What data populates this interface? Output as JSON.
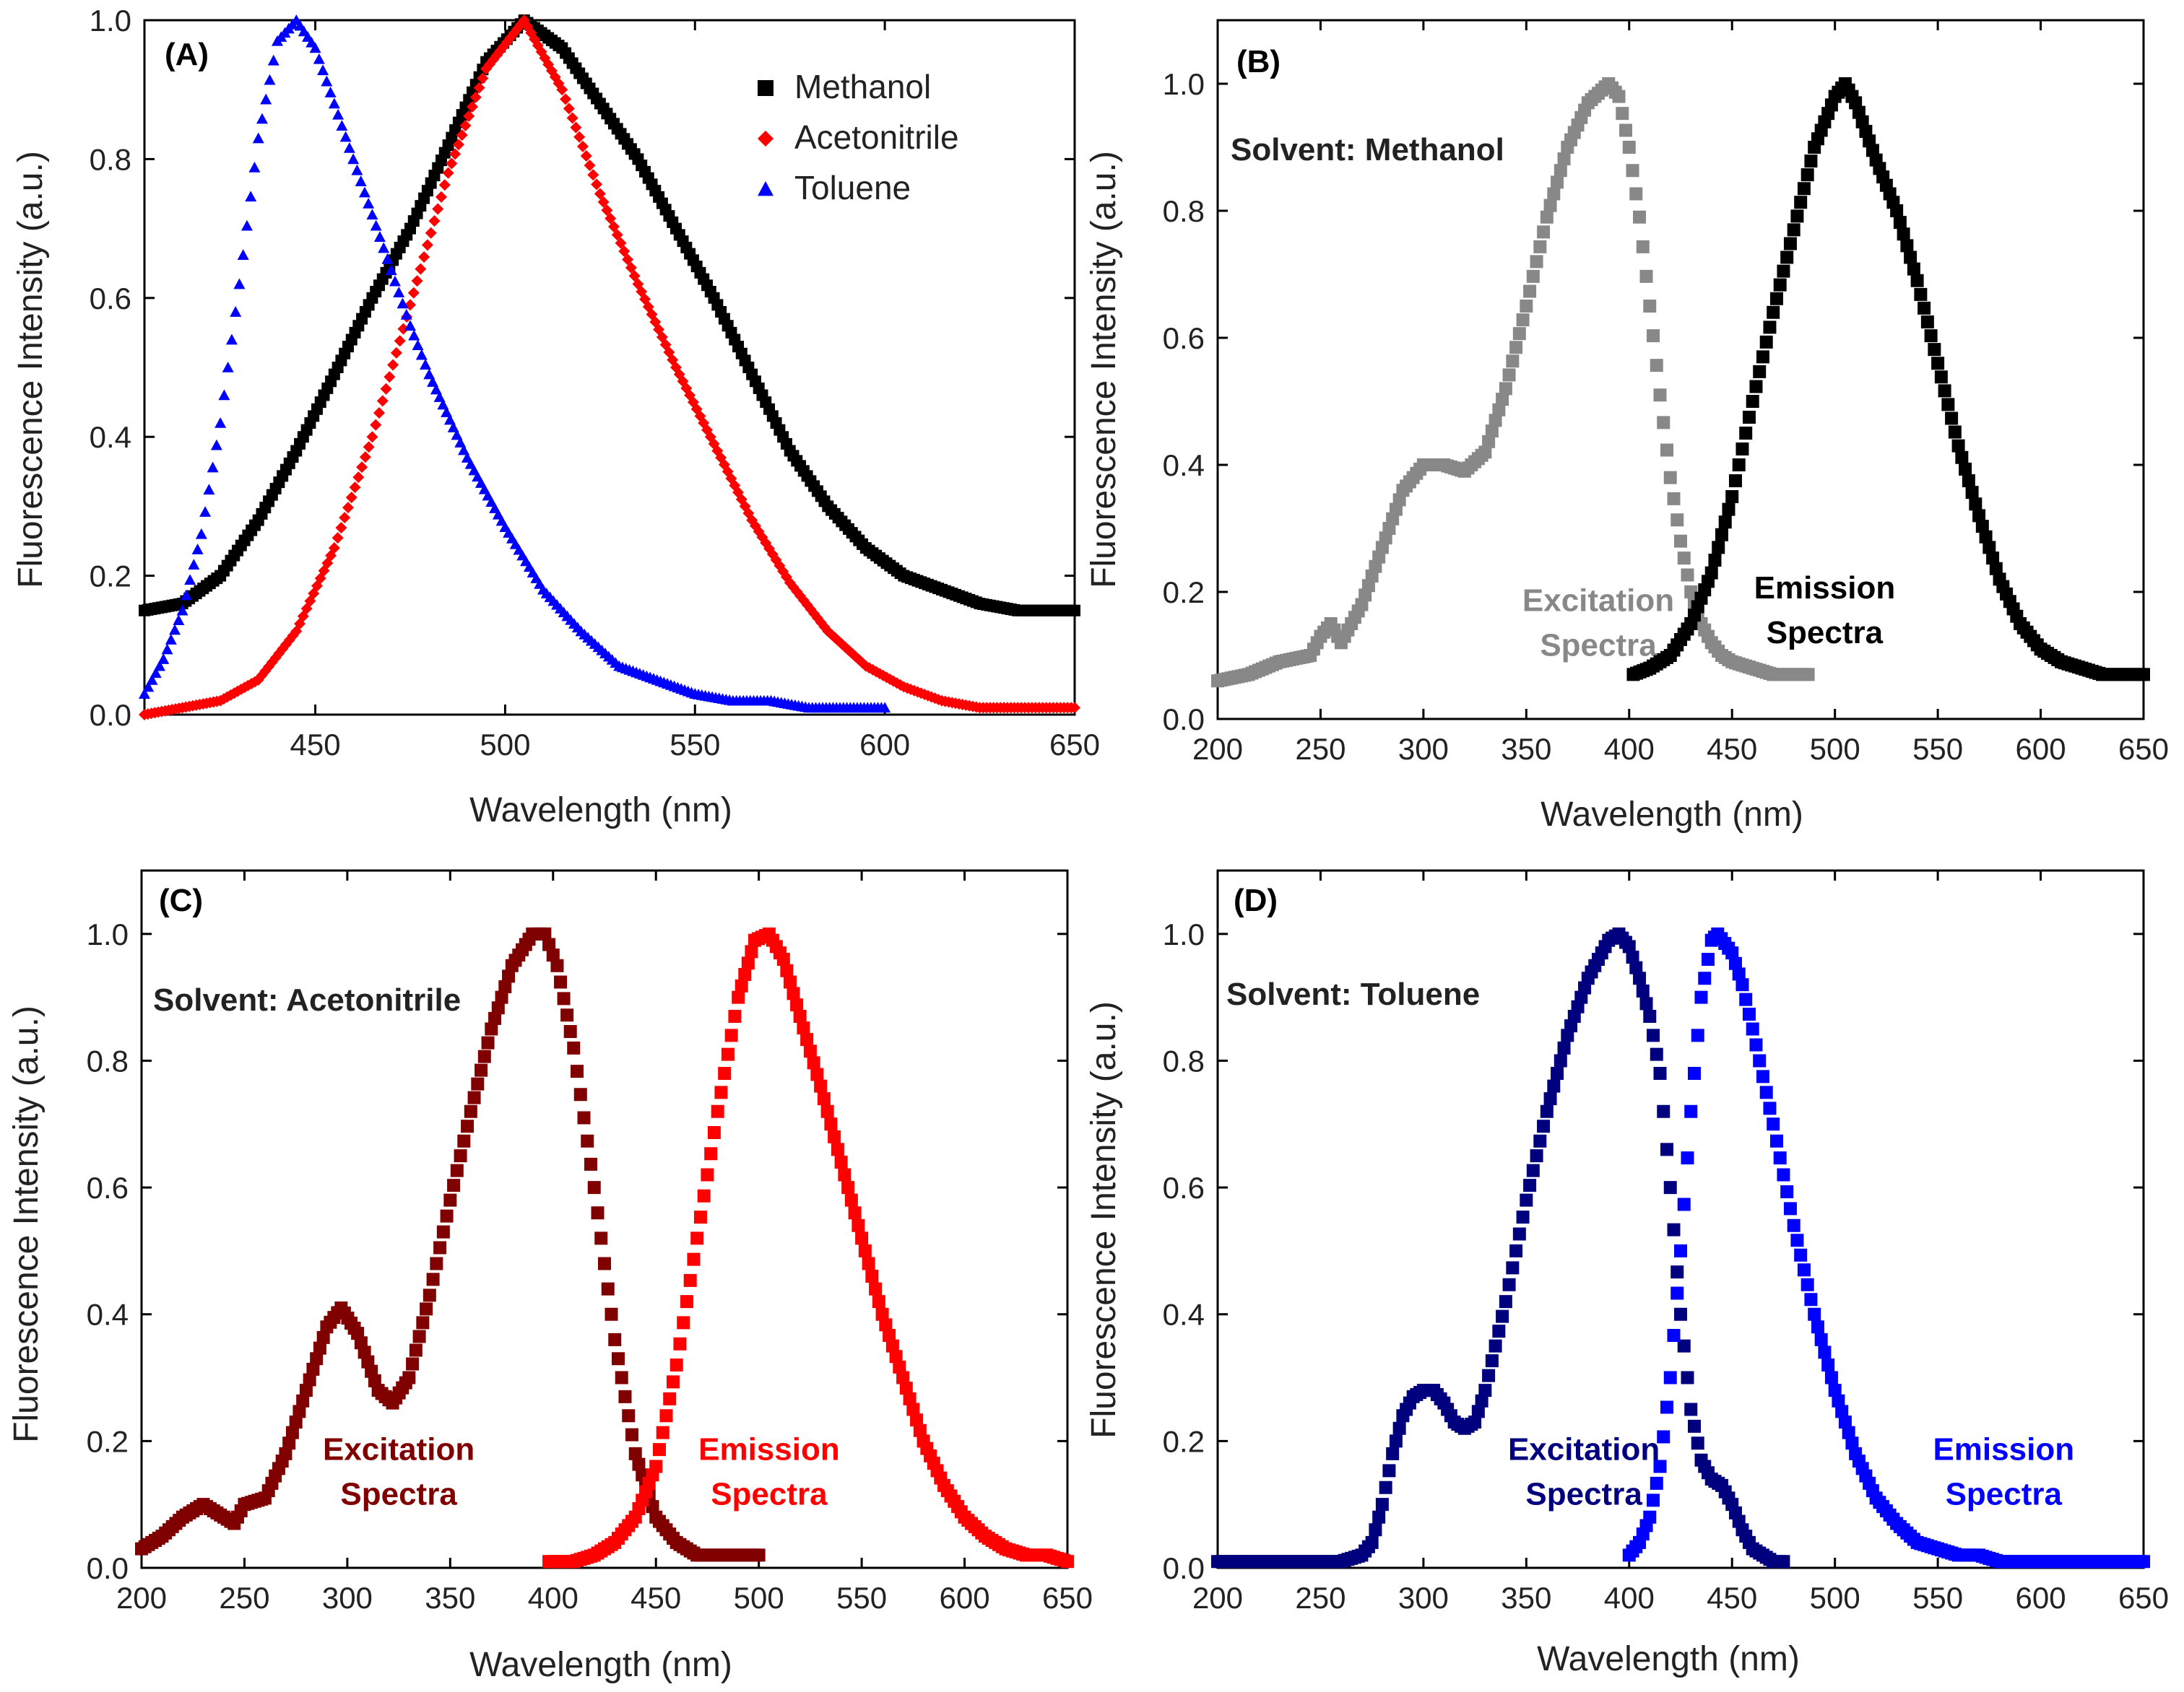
{
  "chart_data": [
    {
      "type": "scatter",
      "panel_label": "(A)",
      "xlabel": "Wavelength (nm)",
      "ylabel": "Fluorescence Intensity (a.u.)",
      "xlim": [
        405,
        650
      ],
      "ylim": [
        0,
        1.0
      ],
      "xticks": [
        "450",
        "500",
        "550",
        "600",
        "650"
      ],
      "yticks": [
        "0.0",
        "0.2",
        "0.4",
        "0.6",
        "0.8",
        "1.0"
      ],
      "legend_position": "top-right",
      "series": [
        {
          "name": "Methanol",
          "color": "#000000",
          "marker": "square",
          "x": [
            405,
            415,
            425,
            435,
            445,
            455,
            465,
            475,
            485,
            495,
            505,
            515,
            525,
            535,
            545,
            555,
            565,
            575,
            585,
            595,
            605,
            615,
            625,
            635,
            650
          ],
          "y": [
            0.15,
            0.16,
            0.2,
            0.28,
            0.38,
            0.49,
            0.6,
            0.7,
            0.82,
            0.94,
            1.0,
            0.96,
            0.88,
            0.8,
            0.7,
            0.6,
            0.49,
            0.38,
            0.3,
            0.24,
            0.2,
            0.18,
            0.16,
            0.15,
            0.15
          ]
        },
        {
          "name": "Acetonitrile",
          "color": "#ff0000",
          "marker": "diamond",
          "x": [
            405,
            415,
            425,
            435,
            445,
            455,
            465,
            475,
            485,
            495,
            505,
            515,
            525,
            535,
            545,
            555,
            565,
            575,
            585,
            595,
            605,
            615,
            625,
            635,
            650
          ],
          "y": [
            0.0,
            0.01,
            0.02,
            0.05,
            0.12,
            0.24,
            0.4,
            0.59,
            0.78,
            0.93,
            1.0,
            0.9,
            0.75,
            0.62,
            0.5,
            0.39,
            0.28,
            0.19,
            0.12,
            0.07,
            0.04,
            0.02,
            0.01,
            0.01,
            0.01
          ]
        },
        {
          "name": "Toluene",
          "color": "#0000ff",
          "marker": "triangle",
          "x": [
            405,
            410,
            415,
            420,
            425,
            430,
            435,
            440,
            445,
            450,
            455,
            460,
            465,
            470,
            475,
            480,
            490,
            500,
            510,
            520,
            530,
            540,
            550,
            560,
            570,
            580,
            590,
            600
          ],
          "y": [
            0.03,
            0.08,
            0.15,
            0.26,
            0.42,
            0.62,
            0.83,
            0.97,
            1.0,
            0.96,
            0.88,
            0.8,
            0.72,
            0.64,
            0.56,
            0.49,
            0.37,
            0.27,
            0.18,
            0.12,
            0.07,
            0.05,
            0.03,
            0.02,
            0.02,
            0.01,
            0.01,
            0.01
          ]
        }
      ]
    },
    {
      "type": "scatter",
      "panel_label": "(B)",
      "annotation": "Solvent: Methanol",
      "xlabel": "Wavelength (nm)",
      "ylabel": "Fluorescence Intensity (a.u.)",
      "xlim": [
        200,
        650
      ],
      "ylim": [
        0,
        1.1
      ],
      "xticks": [
        "200",
        "250",
        "300",
        "350",
        "400",
        "450",
        "500",
        "550",
        "600",
        "650"
      ],
      "yticks": [
        "0.0",
        "0.2",
        "0.4",
        "0.6",
        "0.8",
        "1.0"
      ],
      "series": [
        {
          "name": "Excitation Spectra",
          "label_lines": [
            "Excitation",
            "Spectra"
          ],
          "label_x": 385,
          "label_y": 0.17,
          "color": "#888888",
          "x": [
            200,
            215,
            230,
            245,
            250,
            255,
            260,
            270,
            280,
            290,
            300,
            310,
            320,
            330,
            340,
            350,
            360,
            370,
            380,
            390,
            395,
            400,
            405,
            410,
            415,
            420,
            425,
            430,
            435,
            440,
            445,
            450,
            460,
            470,
            487
          ],
          "y": [
            0.06,
            0.07,
            0.09,
            0.1,
            0.13,
            0.15,
            0.12,
            0.18,
            0.27,
            0.36,
            0.4,
            0.4,
            0.39,
            0.42,
            0.52,
            0.65,
            0.79,
            0.9,
            0.97,
            1.0,
            0.98,
            0.9,
            0.79,
            0.65,
            0.51,
            0.38,
            0.28,
            0.2,
            0.15,
            0.12,
            0.1,
            0.09,
            0.08,
            0.07,
            0.07
          ]
        },
        {
          "name": "Emission Spectra",
          "label_lines": [
            "Emission",
            "Spectra"
          ],
          "label_x": 495,
          "label_y": 0.19,
          "color": "#000000",
          "x": [
            402,
            410,
            420,
            430,
            440,
            450,
            460,
            470,
            480,
            490,
            500,
            505,
            510,
            520,
            530,
            540,
            550,
            560,
            570,
            580,
            590,
            600,
            610,
            620,
            630,
            640,
            650
          ],
          "y": [
            0.07,
            0.08,
            0.1,
            0.15,
            0.23,
            0.35,
            0.5,
            0.64,
            0.77,
            0.9,
            0.98,
            1.0,
            0.97,
            0.88,
            0.8,
            0.69,
            0.56,
            0.43,
            0.32,
            0.22,
            0.15,
            0.11,
            0.09,
            0.08,
            0.07,
            0.07,
            0.07
          ]
        }
      ]
    },
    {
      "type": "scatter",
      "panel_label": "(C)",
      "annotation": "Solvent: Acetonitrile",
      "xlabel": "Wavelength (nm)",
      "ylabel": "Fluorescence Intensity (a.u.)",
      "xlim": [
        200,
        650
      ],
      "ylim": [
        0,
        1.1
      ],
      "xticks": [
        "200",
        "250",
        "300",
        "350",
        "400",
        "450",
        "500",
        "550",
        "600",
        "650"
      ],
      "yticks": [
        "0.0",
        "0.2",
        "0.4",
        "0.6",
        "0.8",
        "1.0"
      ],
      "series": [
        {
          "name": "Excitation Spectra",
          "label_lines": [
            "Excitation",
            "Spectra"
          ],
          "label_x": 325,
          "label_y": 0.17,
          "color": "#800000",
          "x": [
            200,
            210,
            220,
            230,
            240,
            245,
            250,
            260,
            270,
            280,
            290,
            297,
            305,
            315,
            322,
            330,
            340,
            350,
            360,
            370,
            380,
            390,
            396,
            402,
            410,
            420,
            430,
            440,
            450,
            460,
            470,
            480,
            490,
            500
          ],
          "y": [
            0.03,
            0.05,
            0.08,
            0.1,
            0.08,
            0.07,
            0.1,
            0.11,
            0.18,
            0.28,
            0.38,
            0.41,
            0.37,
            0.28,
            0.26,
            0.3,
            0.43,
            0.58,
            0.72,
            0.85,
            0.95,
            1.0,
            1.0,
            0.95,
            0.82,
            0.6,
            0.36,
            0.18,
            0.08,
            0.04,
            0.02,
            0.02,
            0.02,
            0.02
          ]
        },
        {
          "name": "Emission Spectra",
          "label_lines": [
            "Emission",
            "Spectra"
          ],
          "label_x": 505,
          "label_y": 0.17,
          "color": "#ff0000",
          "x": [
            398,
            410,
            420,
            430,
            440,
            450,
            460,
            470,
            480,
            490,
            498,
            505,
            512,
            520,
            530,
            540,
            550,
            560,
            570,
            580,
            590,
            600,
            610,
            620,
            630,
            640,
            650
          ],
          "y": [
            0.01,
            0.01,
            0.02,
            0.04,
            0.08,
            0.16,
            0.32,
            0.52,
            0.72,
            0.9,
            0.99,
            1.0,
            0.96,
            0.87,
            0.76,
            0.64,
            0.52,
            0.4,
            0.3,
            0.2,
            0.13,
            0.08,
            0.05,
            0.03,
            0.02,
            0.02,
            0.01
          ]
        }
      ]
    },
    {
      "type": "scatter",
      "panel_label": "(D)",
      "annotation": "Solvent: Toluene",
      "xlabel": "Wavelength (nm)",
      "ylabel": "Fluorescence Intensity (a.u.)",
      "xlim": [
        200,
        650
      ],
      "ylim": [
        0,
        1.1
      ],
      "xticks": [
        "200",
        "250",
        "300",
        "350",
        "400",
        "450",
        "500",
        "550",
        "600",
        "650"
      ],
      "yticks": [
        "0.0",
        "0.2",
        "0.4",
        "0.6",
        "0.8",
        "1.0"
      ],
      "series": [
        {
          "name": "Excitation Spectra",
          "label_lines": [
            "Excitation",
            "Spectra"
          ],
          "label_x": 378,
          "label_y": 0.17,
          "color": "#00007f",
          "x": [
            200,
            220,
            240,
            260,
            270,
            275,
            280,
            285,
            290,
            295,
            300,
            305,
            310,
            315,
            320,
            325,
            330,
            340,
            350,
            360,
            370,
            380,
            390,
            395,
            400,
            405,
            410,
            415,
            420,
            425,
            430,
            435,
            440,
            445,
            450,
            455,
            460,
            465,
            470,
            475
          ],
          "y": [
            0.01,
            0.01,
            0.01,
            0.01,
            0.02,
            0.04,
            0.1,
            0.18,
            0.24,
            0.27,
            0.28,
            0.28,
            0.26,
            0.23,
            0.22,
            0.23,
            0.28,
            0.42,
            0.58,
            0.72,
            0.84,
            0.93,
            0.99,
            1.0,
            0.98,
            0.93,
            0.87,
            0.78,
            0.6,
            0.4,
            0.25,
            0.17,
            0.14,
            0.13,
            0.1,
            0.06,
            0.03,
            0.02,
            0.01,
            0.01
          ]
        },
        {
          "name": "Emission Spectra",
          "label_lines": [
            "Emission",
            "Spectra"
          ],
          "label_x": 582,
          "label_y": 0.17,
          "color": "#0000ff",
          "x": [
            400,
            405,
            410,
            415,
            420,
            425,
            430,
            435,
            440,
            443,
            450,
            455,
            460,
            470,
            480,
            490,
            500,
            510,
            520,
            530,
            540,
            550,
            560,
            570,
            580,
            600,
            620,
            650
          ],
          "y": [
            0.02,
            0.04,
            0.08,
            0.16,
            0.3,
            0.5,
            0.72,
            0.9,
            0.99,
            1.0,
            0.97,
            0.92,
            0.85,
            0.7,
            0.54,
            0.4,
            0.28,
            0.18,
            0.11,
            0.07,
            0.04,
            0.03,
            0.02,
            0.02,
            0.01,
            0.01,
            0.01,
            0.01
          ]
        }
      ]
    }
  ]
}
